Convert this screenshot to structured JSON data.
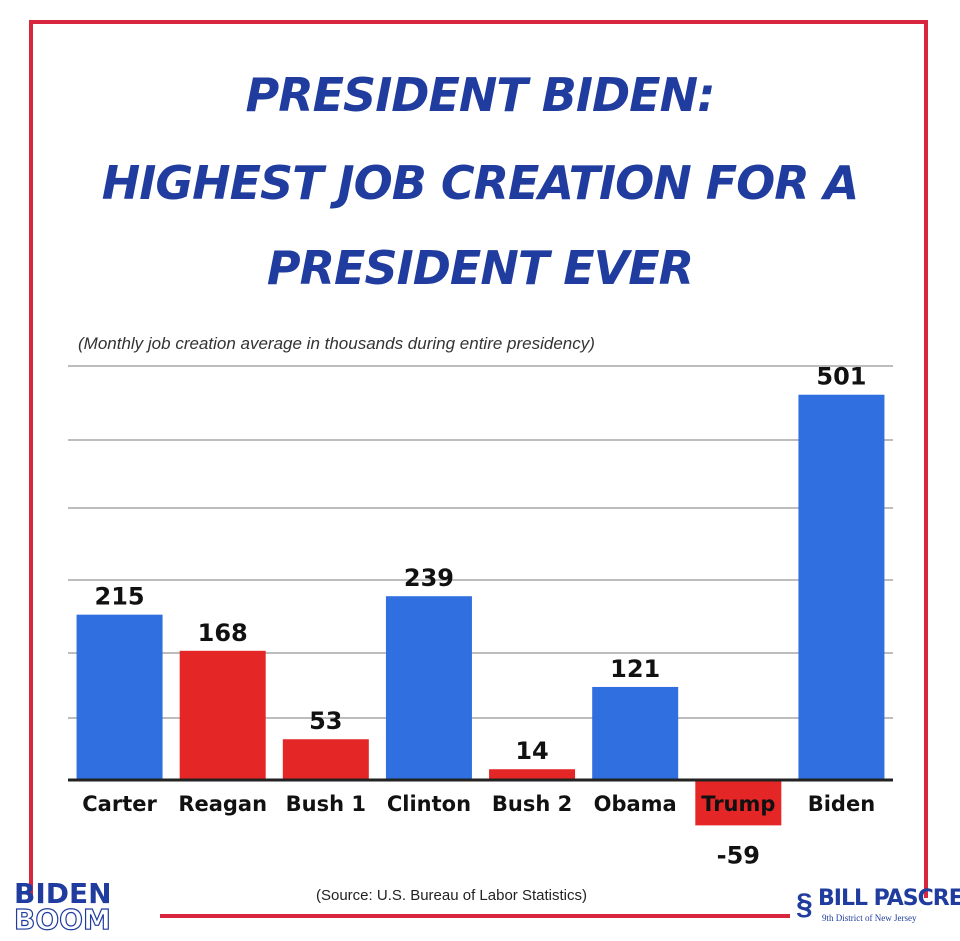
{
  "header": {
    "title_line1": "PRESIDENT BIDEN:",
    "title_line2": "HIGHEST JOB CREATION FOR A",
    "title_line3": "PRESIDENT EVER",
    "subtitle": "(Monthly job creation average in thousands during entire presidency)"
  },
  "footer": {
    "source": "(Source: U.S. Bureau of Labor Statistics)",
    "logo_left_line1": "BIDEN",
    "logo_left_line2": "BOOM",
    "logo_right_name": "BILL PASCRELL",
    "logo_right_sub": "9th District of New Jersey"
  },
  "colors": {
    "blue": "#2f6fdf",
    "red": "#e42626",
    "title_blue": "#1f3c9e",
    "frame_red": "#d7263d"
  },
  "chart_data": {
    "type": "bar",
    "title": "PRESIDENT BIDEN: HIGHEST JOB CREATION FOR A PRESIDENT EVER",
    "subtitle": "(Monthly job creation average in thousands during entire presidency)",
    "categories": [
      "Carter",
      "Reagan",
      "Bush 1",
      "Clinton",
      "Bush 2",
      "Obama",
      "Trump",
      "Biden"
    ],
    "values": [
      215,
      168,
      53,
      239,
      14,
      121,
      -59,
      501
    ],
    "bar_colors": [
      "blue",
      "red",
      "red",
      "blue",
      "red",
      "blue",
      "red",
      "blue"
    ],
    "ylim": [
      -59,
      501
    ],
    "grid": true,
    "legend": "none"
  }
}
